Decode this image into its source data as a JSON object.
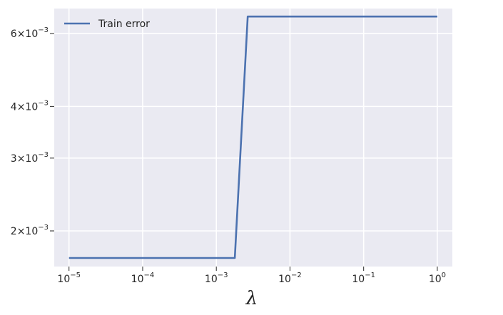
{
  "chart_data": {
    "type": "line",
    "xlabel": "λ",
    "ylabel": "",
    "x_scale": "log",
    "y_scale": "log",
    "xlim": [
      6.3e-06,
      1.6
    ],
    "ylim": [
      0.00164,
      0.0069
    ],
    "grid": true,
    "legend_position": "top-left",
    "background_color": "#EAEAF2",
    "grid_color": "#FFFFFF",
    "x_ticks": [
      {
        "value": 1e-05,
        "base": "10",
        "exp": "−5"
      },
      {
        "value": 0.0001,
        "base": "10",
        "exp": "−4"
      },
      {
        "value": 0.001,
        "base": "10",
        "exp": "−3"
      },
      {
        "value": 0.01,
        "base": "10",
        "exp": "−2"
      },
      {
        "value": 0.1,
        "base": "10",
        "exp": "−1"
      },
      {
        "value": 1,
        "base": "10",
        "exp": "0"
      }
    ],
    "y_ticks": [
      {
        "value": 0.002,
        "mantissa": "2",
        "times": "×",
        "base": "10",
        "exp": "−3"
      },
      {
        "value": 0.003,
        "mantissa": "3",
        "times": "×",
        "base": "10",
        "exp": "−3"
      },
      {
        "value": 0.004,
        "mantissa": "4",
        "times": "×",
        "base": "10",
        "exp": "−3"
      },
      {
        "value": 0.006,
        "mantissa": "6",
        "times": "×",
        "base": "10",
        "exp": "−3"
      }
    ],
    "series": [
      {
        "name": "Train error",
        "color": "#4C72B0",
        "x": [
          1e-05,
          0.00178,
          0.00267,
          1
        ],
        "y": [
          0.00172,
          0.00172,
          0.0066,
          0.0066
        ]
      }
    ]
  }
}
